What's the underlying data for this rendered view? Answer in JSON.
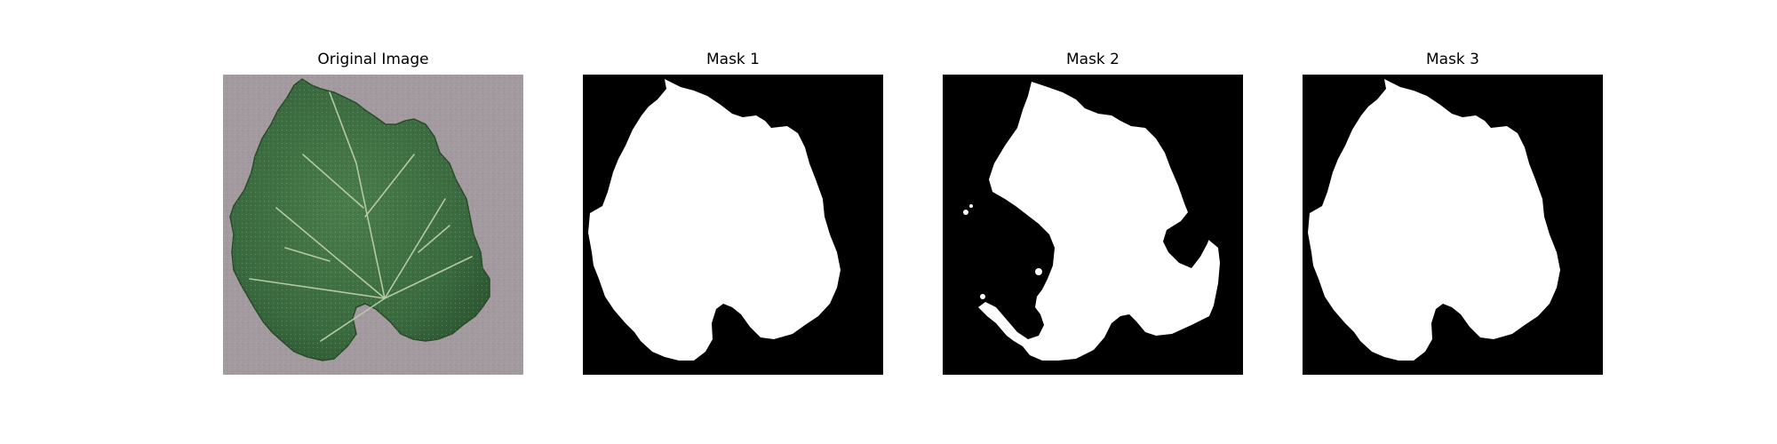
{
  "figure": {
    "panels": [
      {
        "title": "Original Image"
      },
      {
        "title": "Mask 1"
      },
      {
        "title": "Mask 2"
      },
      {
        "title": "Mask 3"
      }
    ]
  },
  "colors": {
    "background": "#ffffff",
    "mask_background": "#000000",
    "mask_foreground": "#ffffff",
    "photo_background": "#a39a9f",
    "leaf_dark": "#2f5a34",
    "leaf_mid": "#3f7245",
    "leaf_light": "#5a8a55",
    "vein": "#b6c9a2"
  }
}
